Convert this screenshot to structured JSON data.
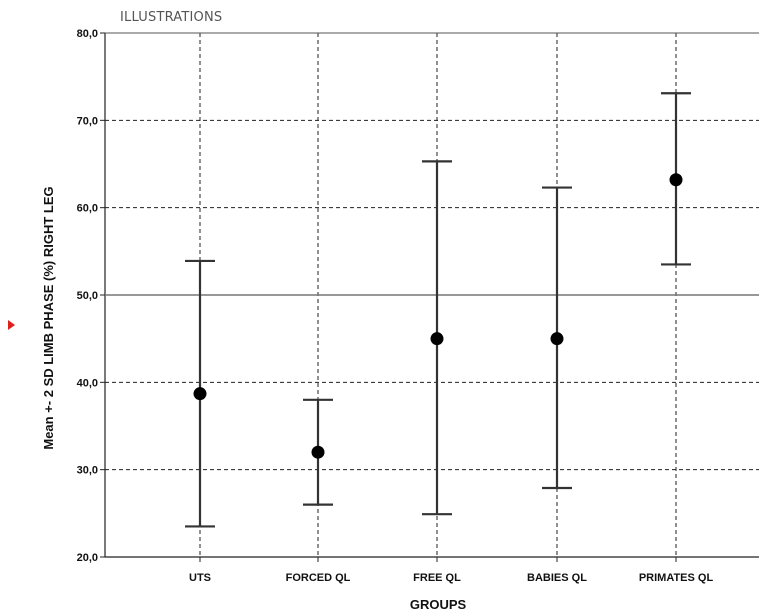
{
  "header": {
    "label": "ILLUSTRATIONS"
  },
  "chart_data": {
    "type": "errorbar",
    "title": "",
    "xlabel": "GROUPS",
    "ylabel": "Mean +- 2 SD LIMB PHASE (%) RIGHT LEG",
    "ylim": [
      20,
      80
    ],
    "yticks": [
      20,
      30,
      40,
      50,
      60,
      70,
      80
    ],
    "ytick_labels": [
      "20,0",
      "30,0",
      "40,0",
      "50,0",
      "60,0",
      "70,0",
      "80,0"
    ],
    "categories": [
      "UTS",
      "FORCED QL",
      "FREE QL",
      "BABIES QL",
      "PRIMATES QL"
    ],
    "mean": [
      38.7,
      32.0,
      45.0,
      45.0,
      63.2
    ],
    "lower": [
      23.5,
      26.0,
      24.9,
      27.9,
      53.5
    ],
    "upper": [
      53.9,
      38.0,
      65.3,
      62.3,
      73.1
    ],
    "reference_line": 50,
    "grid": true,
    "marker_color": "#000000",
    "line_color": "#333333"
  }
}
